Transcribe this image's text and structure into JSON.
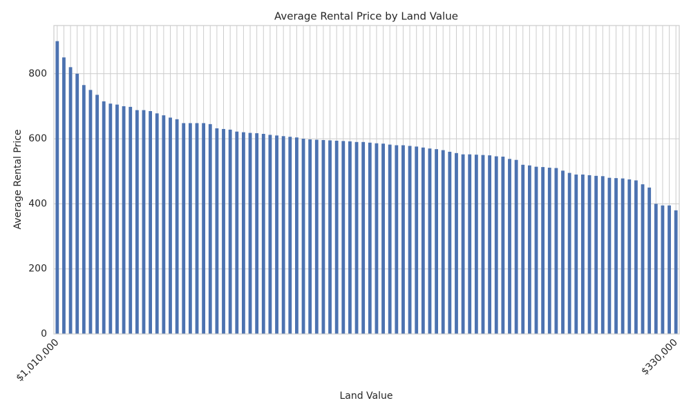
{
  "chart_data": {
    "type": "bar",
    "title": "Average Rental Price by Land Value",
    "xlabel": "Land Value",
    "ylabel": "Average Rental Price",
    "categories": [
      "$1,010,000",
      null,
      null,
      null,
      null,
      null,
      null,
      null,
      null,
      null,
      null,
      null,
      null,
      null,
      null,
      null,
      null,
      null,
      null,
      null,
      null,
      null,
      null,
      null,
      null,
      null,
      null,
      null,
      null,
      null,
      null,
      null,
      null,
      null,
      null,
      null,
      null,
      null,
      null,
      null,
      null,
      null,
      null,
      null,
      null,
      null,
      null,
      null,
      null,
      null,
      null,
      null,
      null,
      null,
      null,
      null,
      null,
      null,
      null,
      null,
      null,
      null,
      null,
      null,
      null,
      null,
      null,
      null,
      null,
      null,
      null,
      null,
      null,
      null,
      null,
      null,
      null,
      null,
      null,
      null,
      null,
      null,
      null,
      null,
      null,
      null,
      null,
      null,
      null,
      null,
      null,
      null,
      null,
      "$330,000"
    ],
    "values": [
      900,
      850,
      820,
      800,
      765,
      750,
      735,
      715,
      708,
      705,
      700,
      698,
      688,
      688,
      685,
      678,
      672,
      665,
      660,
      648,
      648,
      648,
      648,
      645,
      632,
      630,
      628,
      622,
      620,
      618,
      617,
      615,
      612,
      610,
      608,
      606,
      604,
      600,
      598,
      597,
      596,
      595,
      594,
      593,
      592,
      590,
      590,
      588,
      586,
      585,
      582,
      580,
      580,
      578,
      576,
      573,
      570,
      568,
      565,
      560,
      556,
      552,
      552,
      551,
      550,
      549,
      546,
      545,
      538,
      535,
      520,
      518,
      514,
      513,
      511,
      510,
      502,
      495,
      490,
      490,
      488,
      486,
      485,
      480,
      479,
      478,
      475,
      472,
      460,
      450,
      400,
      395,
      395,
      380
    ],
    "color": "#4c72b0",
    "ylim": [
      0,
      948
    ],
    "yticks": [
      0,
      200,
      400,
      600,
      800
    ],
    "grid": true
  }
}
